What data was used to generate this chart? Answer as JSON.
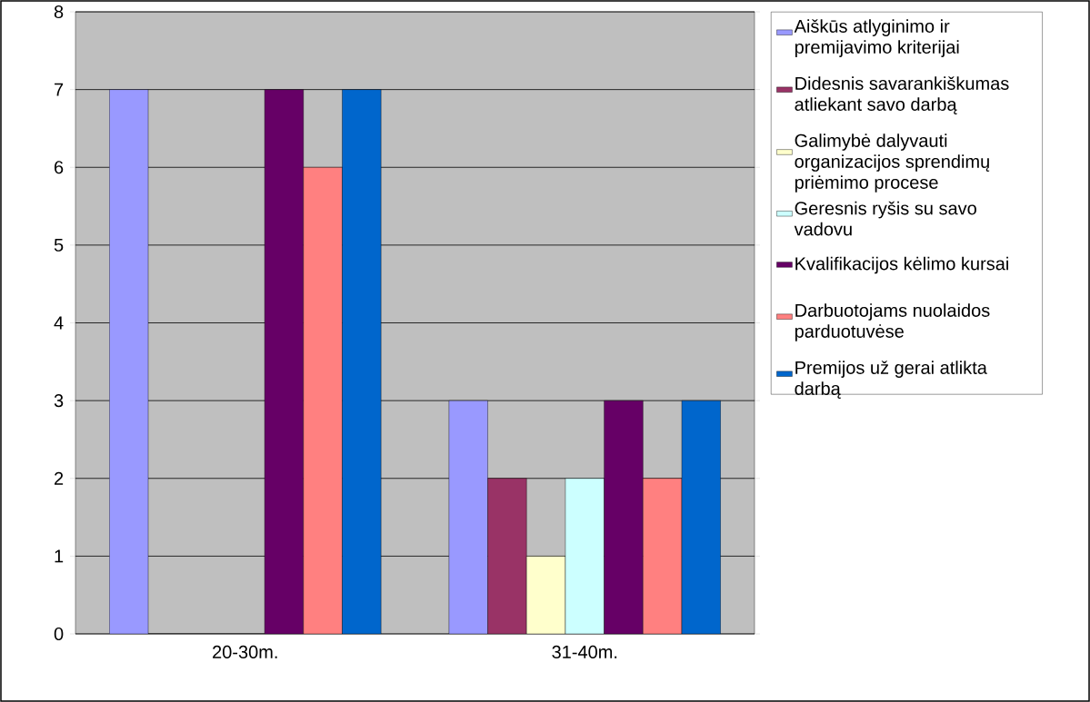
{
  "chart_data": {
    "type": "bar",
    "categories": [
      "20-30m.",
      "31-40m."
    ],
    "series": [
      {
        "name": "Aiškūs atlyginimo ir premijavimo kriterijai",
        "color": "#9999ff",
        "values": [
          7,
          3
        ]
      },
      {
        "name": "Didesnis savarankiškumas atliekant savo darbą",
        "color": "#993366",
        "values": [
          0,
          2
        ]
      },
      {
        "name": "Galimybė dalyvauti organizacijos sprendimų priėmimo procese",
        "color": "#ffffcc",
        "values": [
          0,
          1
        ]
      },
      {
        "name": "Geresnis ryšis su savo vadovu",
        "color": "#ccffff",
        "values": [
          0,
          2
        ]
      },
      {
        "name": "Kvalifikacijos kėlimo kursai",
        "color": "#660066",
        "values": [
          7,
          3
        ]
      },
      {
        "name": "Darbuotojams nuolaidos parduotuvėse",
        "color": "#ff8080",
        "values": [
          6,
          2
        ]
      },
      {
        "name": "Premijos už gerai atlikta darbą",
        "color": "#0066cc",
        "values": [
          7,
          3
        ]
      }
    ],
    "ylim": [
      0,
      8
    ],
    "yticks": [
      0,
      1,
      2,
      3,
      4,
      5,
      6,
      7,
      8
    ],
    "grid": "y",
    "legend": "right"
  }
}
